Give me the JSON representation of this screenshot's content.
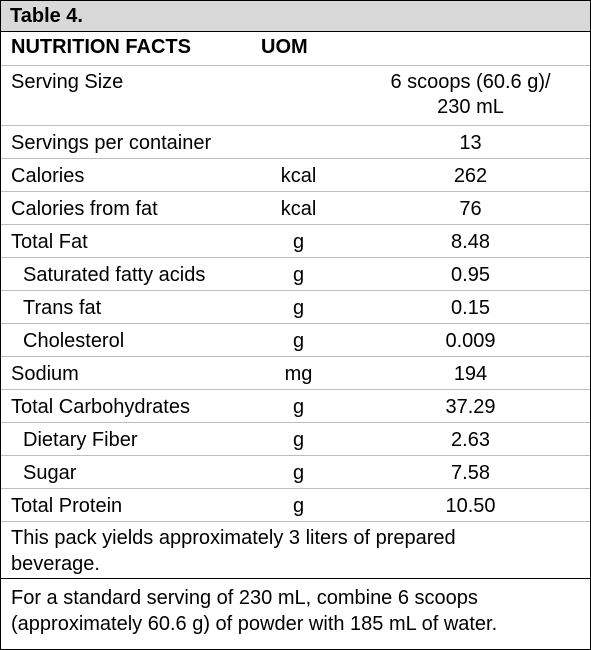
{
  "table": {
    "title": "Table 4.",
    "header": {
      "col1": "NUTRITION FACTS",
      "col2": "UOM",
      "col3": ""
    },
    "serving_size": {
      "label": "Serving Size",
      "uom": "",
      "value_line1": "6 scoops (60.6 g)/",
      "value_line2": "230 mL"
    },
    "rows": [
      {
        "label": "Servings per container",
        "uom": "",
        "value": "13"
      },
      {
        "label": "Calories",
        "uom": "kcal",
        "value": "262"
      },
      {
        "label": "Calories from fat",
        "uom": "kcal",
        "value": "76"
      },
      {
        "label": "Total Fat",
        "uom": "g",
        "value": "8.48"
      },
      {
        "label": "Saturated fatty acids",
        "uom": "g",
        "value": "0.95"
      },
      {
        "label": "Trans fat",
        "uom": "g",
        "value": "0.15"
      },
      {
        "label": "Cholesterol",
        "uom": "g",
        "value": "0.009"
      },
      {
        "label": "Sodium",
        "uom": "mg",
        "value": "194"
      },
      {
        "label": "Total Carbohydrates",
        "uom": "g",
        "value": "37.29"
      },
      {
        "label": "Dietary Fiber",
        "uom": "g",
        "value": "2.63"
      },
      {
        "label": "Sugar",
        "uom": "g",
        "value": "7.58"
      },
      {
        "label": "Total Protein",
        "uom": "g",
        "value": "10.50"
      }
    ],
    "yield_note_line1": "This pack yields approximately 3 liters of prepared",
    "yield_note_line2": "beverage.",
    "footer_line1": "For a standard serving of 230 mL, combine 6 scoops",
    "footer_line2": "(approximately 60.6 g) of powder with 185 mL of water.",
    "colors": {
      "title_background": "#d9d9d9",
      "border": "#000000",
      "row_divider": "#bdbdbd"
    }
  }
}
